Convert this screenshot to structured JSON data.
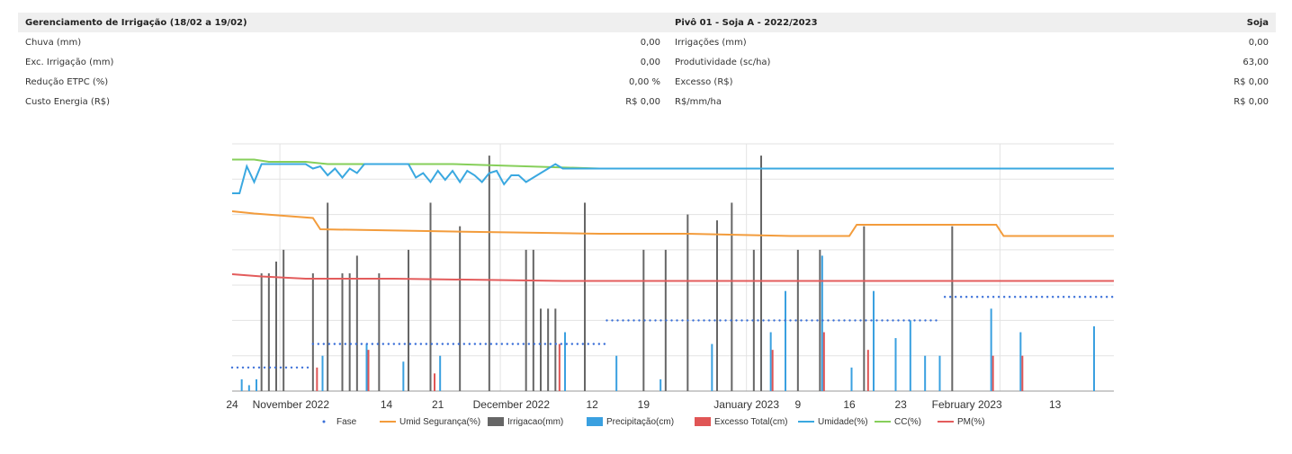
{
  "summary": {
    "header": {
      "title": "Gerenciamento de Irrigação (18/02 a 19/02)",
      "pivot": "Pivô 01 - Soja A - 2022/2023",
      "crop": "Soja"
    },
    "rows": [
      {
        "l1": "Chuva (mm)",
        "v1": "0,00",
        "l2": "Irrigações (mm)",
        "v2": "0,00"
      },
      {
        "l1": "Exc. Irrigação (mm)",
        "v1": "0,00",
        "l2": "Produtividade (sc/ha)",
        "v2": "63,00"
      },
      {
        "l1": "Redução ETPC (%)",
        "v1": "0,00 %",
        "l2": "Excesso (R$)",
        "v2": "R$ 0,00"
      },
      {
        "l1": "Custo Energia (R$)",
        "v1": "R$ 0,00",
        "l2": "R$/mm/ha",
        "v2": "R$ 0,00"
      }
    ]
  },
  "chart_data": {
    "type": "line",
    "x_start": "2022-10-24",
    "x_end": "2023-02-19",
    "x_ticks": [
      "24",
      "November 2022",
      "14",
      "21",
      "December 2022",
      "12",
      "19",
      "January 2023",
      "9",
      "16",
      "23",
      "February 2023",
      "13"
    ],
    "grid": true,
    "legend_position": "bottom",
    "legend": [
      "Fase",
      "Umid Segurança(%)",
      "Irrigacao(mm)",
      "Precipitação(cm)",
      "Excesso Total(cm)",
      "Umidade(%)",
      "CC(%)",
      "PM(%)"
    ],
    "colors": {
      "fase": "#3a6fd8",
      "umid_seguranca": "#f39c3c",
      "irrigacao": "#666666",
      "precipitacao": "#3aa0e0",
      "excesso": "#e05555",
      "umidade": "#3aa8e0",
      "cc": "#86cf5a",
      "pm": "#e35c5c"
    },
    "series": [
      {
        "name": "CC(%)",
        "kind": "line",
        "color": "#86cf5a",
        "points": [
          [
            0,
            103
          ],
          [
            3,
            103
          ],
          [
            5,
            102
          ],
          [
            10,
            102
          ],
          [
            13,
            101
          ],
          [
            30,
            101
          ],
          [
            50,
            99
          ],
          [
            120,
            99
          ]
        ]
      },
      {
        "name": "Umid Segurança(%)",
        "kind": "line",
        "color": "#f39c3c",
        "points": [
          [
            0,
            80
          ],
          [
            3,
            79
          ],
          [
            7,
            78
          ],
          [
            11,
            77
          ],
          [
            12,
            72
          ],
          [
            30,
            71
          ],
          [
            50,
            70
          ],
          [
            62,
            70
          ],
          [
            76,
            69
          ],
          [
            84,
            69
          ],
          [
            85,
            74
          ],
          [
            97,
            74
          ],
          [
            104,
            74
          ],
          [
            105,
            69
          ],
          [
            120,
            69
          ]
        ]
      },
      {
        "name": "PM(%)",
        "kind": "line",
        "color": "#e35c5c",
        "points": [
          [
            0,
            52
          ],
          [
            4,
            51
          ],
          [
            10,
            50
          ],
          [
            22,
            50
          ],
          [
            45,
            49
          ],
          [
            120,
            49
          ]
        ]
      },
      {
        "name": "Umidade(%)",
        "kind": "line",
        "color": "#3aa8e0",
        "points": [
          [
            0,
            88
          ],
          [
            1,
            88
          ],
          [
            2,
            100
          ],
          [
            3,
            93
          ],
          [
            4,
            101
          ],
          [
            10,
            101
          ],
          [
            11,
            99
          ],
          [
            12,
            100
          ],
          [
            13,
            96
          ],
          [
            14,
            99
          ],
          [
            15,
            95
          ],
          [
            16,
            99
          ],
          [
            17,
            97
          ],
          [
            18,
            101
          ],
          [
            24,
            101
          ],
          [
            25,
            95
          ],
          [
            26,
            97
          ],
          [
            27,
            93
          ],
          [
            28,
            98
          ],
          [
            29,
            94
          ],
          [
            30,
            98
          ],
          [
            31,
            93
          ],
          [
            32,
            98
          ],
          [
            33,
            96
          ],
          [
            34,
            93
          ],
          [
            35,
            97
          ],
          [
            36,
            98
          ],
          [
            37,
            92
          ],
          [
            38,
            96
          ],
          [
            39,
            96
          ],
          [
            40,
            93
          ],
          [
            41,
            95
          ],
          [
            42,
            97
          ],
          [
            43,
            99
          ],
          [
            44,
            101
          ],
          [
            45,
            99
          ],
          [
            46,
            99
          ],
          [
            47,
            99
          ],
          [
            48,
            99
          ],
          [
            49,
            99
          ],
          [
            50,
            99
          ],
          [
            51,
            99
          ],
          [
            52,
            99
          ],
          [
            53,
            99
          ],
          [
            54,
            99
          ],
          [
            55,
            99
          ],
          [
            56,
            99
          ],
          [
            57,
            99
          ],
          [
            58,
            99
          ],
          [
            59,
            99
          ],
          [
            60,
            99
          ],
          [
            61,
            99
          ],
          [
            62,
            99
          ],
          [
            63,
            99
          ],
          [
            64,
            99
          ],
          [
            65,
            99
          ],
          [
            66,
            99
          ],
          [
            67,
            99
          ],
          [
            68,
            99
          ],
          [
            69,
            99
          ],
          [
            70,
            99
          ],
          [
            71,
            99
          ],
          [
            72,
            99
          ],
          [
            73,
            99
          ],
          [
            74,
            99
          ],
          [
            75,
            99
          ],
          [
            76,
            99
          ],
          [
            77,
            99
          ],
          [
            78,
            99
          ],
          [
            79,
            99
          ],
          [
            80,
            99
          ],
          [
            81,
            99
          ],
          [
            82,
            99
          ],
          [
            83,
            99
          ],
          [
            84,
            99
          ],
          [
            85,
            99
          ],
          [
            86,
            99
          ],
          [
            87,
            99
          ],
          [
            88,
            99
          ],
          [
            89,
            99
          ],
          [
            90,
            99
          ],
          [
            91,
            99
          ],
          [
            92,
            99
          ],
          [
            93,
            99
          ],
          [
            94,
            99
          ],
          [
            95,
            99
          ],
          [
            96,
            99
          ],
          [
            97,
            99
          ],
          [
            98,
            99
          ],
          [
            99,
            99
          ],
          [
            100,
            99
          ],
          [
            101,
            99
          ],
          [
            102,
            99
          ],
          [
            103,
            99
          ],
          [
            104,
            99
          ],
          [
            105,
            99
          ],
          [
            106,
            99
          ],
          [
            107,
            99
          ],
          [
            108,
            99
          ],
          [
            109,
            99
          ],
          [
            110,
            99
          ],
          [
            111,
            99
          ],
          [
            112,
            99
          ],
          [
            113,
            99
          ],
          [
            114,
            99
          ],
          [
            115,
            99
          ],
          [
            116,
            99
          ],
          [
            117,
            99
          ],
          [
            118,
            99
          ],
          [
            119,
            99
          ],
          [
            120,
            99
          ]
        ]
      },
      {
        "name": "Fase",
        "kind": "dotted",
        "color": "#3a6fd8",
        "points": [
          [
            0,
            4
          ],
          [
            11,
            4
          ],
          [
            11,
            8
          ],
          [
            51,
            8
          ],
          [
            51,
            12
          ],
          [
            96,
            12
          ],
          [
            97,
            16
          ],
          [
            120,
            16
          ]
        ]
      }
    ],
    "bars": {
      "irrigacao": [
        [
          4,
          20
        ],
        [
          5,
          20
        ],
        [
          6,
          22
        ],
        [
          7,
          24
        ],
        [
          11,
          20
        ],
        [
          13,
          32
        ],
        [
          15,
          20
        ],
        [
          16,
          20
        ],
        [
          17,
          23
        ],
        [
          20,
          20
        ],
        [
          24,
          24
        ],
        [
          27,
          32
        ],
        [
          31,
          28
        ],
        [
          35,
          40
        ],
        [
          40,
          24
        ],
        [
          41,
          24
        ],
        [
          42,
          14
        ],
        [
          43,
          14
        ],
        [
          44,
          14
        ],
        [
          48,
          32
        ],
        [
          56,
          24
        ],
        [
          59,
          24
        ],
        [
          62,
          30
        ],
        [
          66,
          29
        ],
        [
          68,
          32
        ],
        [
          71,
          24
        ],
        [
          72,
          40
        ],
        [
          77,
          24
        ],
        [
          80,
          24
        ],
        [
          86,
          28
        ],
        [
          98,
          28
        ]
      ],
      "precipitacao": [
        [
          1,
          2
        ],
        [
          2,
          1
        ],
        [
          3,
          2
        ],
        [
          12,
          6
        ],
        [
          18,
          8
        ],
        [
          23,
          5
        ],
        [
          28,
          6
        ],
        [
          45,
          10
        ],
        [
          52,
          6
        ],
        [
          58,
          2
        ],
        [
          65,
          8
        ],
        [
          73,
          10
        ],
        [
          75,
          17
        ],
        [
          80,
          23
        ],
        [
          84,
          4
        ],
        [
          87,
          17
        ],
        [
          90,
          9
        ],
        [
          92,
          12
        ],
        [
          94,
          6
        ],
        [
          96,
          6
        ],
        [
          103,
          14
        ],
        [
          107,
          10
        ],
        [
          117,
          11
        ]
      ],
      "excesso": [
        [
          11,
          4
        ],
        [
          18,
          7
        ],
        [
          27,
          3
        ],
        [
          44,
          8
        ],
        [
          73,
          7
        ],
        [
          80,
          10
        ],
        [
          86,
          7
        ],
        [
          103,
          6
        ],
        [
          107,
          6
        ]
      ]
    }
  }
}
